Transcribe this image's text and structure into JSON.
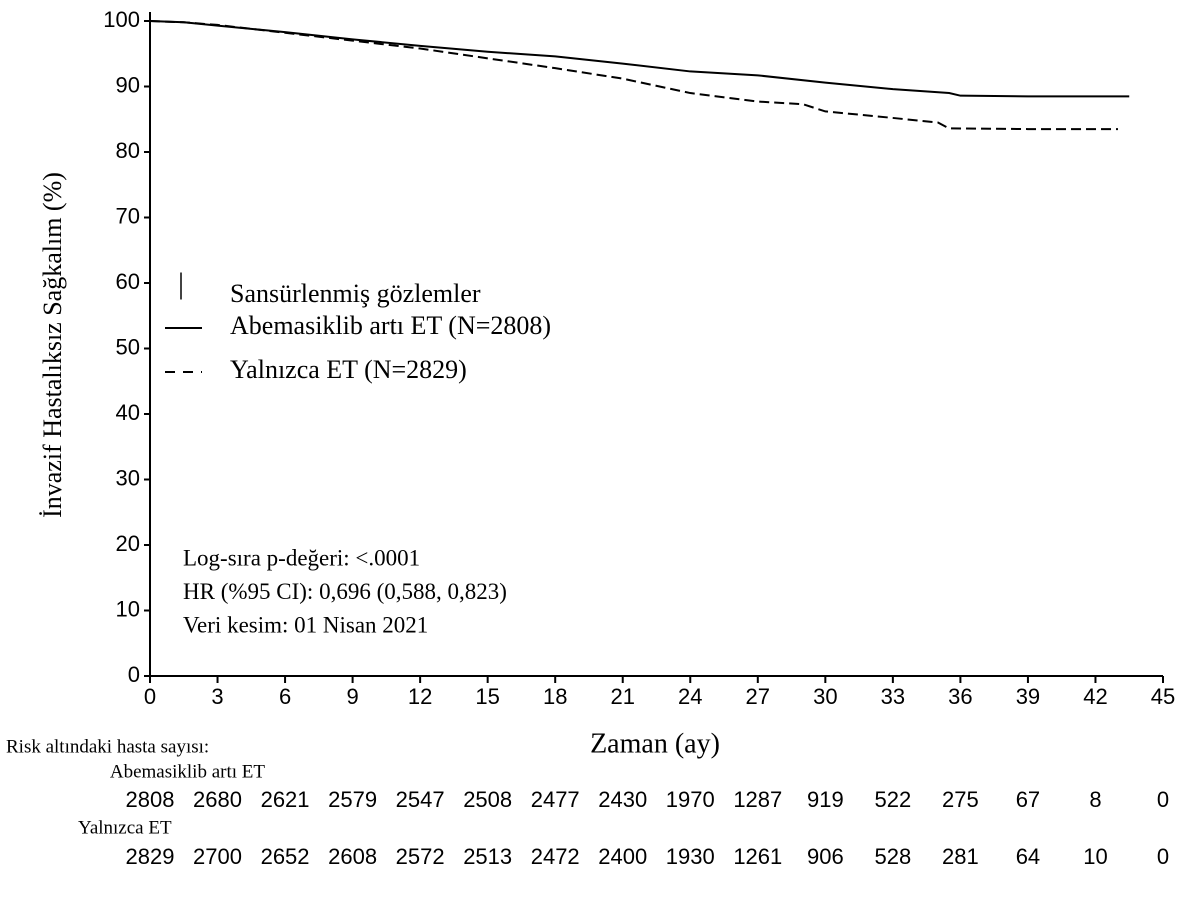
{
  "chart_data": {
    "type": "line",
    "y_label": "İnvazif Hastalıksız Sağkalım (%)",
    "x_label": "Zaman (ay)",
    "xlim": [
      0,
      45
    ],
    "ylim": [
      0,
      100
    ],
    "xticks": [
      0,
      3,
      6,
      9,
      12,
      15,
      18,
      21,
      24,
      27,
      30,
      33,
      36,
      39,
      42,
      45
    ],
    "yticks": [
      0,
      10,
      20,
      30,
      40,
      50,
      60,
      70,
      80,
      90,
      100
    ],
    "censored_label": "Sansürlenmiş gözlemler",
    "series": [
      {
        "name": "Abemasiklib artı ET (N=2808)",
        "color": "#000000",
        "dash": "solid",
        "x": [
          0,
          1.5,
          3,
          6,
          9,
          12,
          15,
          18,
          21,
          24,
          27,
          30,
          33,
          35.5,
          36,
          39,
          42,
          43.5
        ],
        "values": [
          100,
          99.8,
          99.3,
          98.3,
          97.2,
          96.2,
          95.3,
          94.6,
          93.5,
          92.3,
          91.7,
          90.6,
          89.6,
          89.0,
          88.6,
          88.5,
          88.5,
          88.5
        ]
      },
      {
        "name": "Yalnızca ET (N=2829)",
        "color": "#000000",
        "dash": "dashed",
        "x": [
          0,
          1.5,
          3,
          6,
          9,
          12,
          15,
          18,
          21,
          24,
          27,
          29,
          30,
          33,
          35,
          35.5,
          39,
          42,
          43
        ],
        "values": [
          100,
          99.8,
          99.4,
          98.2,
          97.0,
          95.8,
          94.3,
          92.8,
          91.2,
          89.0,
          87.7,
          87.3,
          86.2,
          85.2,
          84.5,
          83.6,
          83.5,
          83.5,
          83.5
        ]
      }
    ],
    "annotations": [
      "Log-sıra p-değeri: <.0001",
      "HR (%95 CI): 0,696 (0,588, 0,823)",
      "Veri kesim: 01 Nisan 2021"
    ],
    "risk_table": {
      "title": "Risk altındaki hasta sayısı:",
      "rows": [
        {
          "name": "Abemasiklib artı ET",
          "values": [
            2808,
            2680,
            2621,
            2579,
            2547,
            2508,
            2477,
            2430,
            1970,
            1287,
            919,
            522,
            275,
            67,
            8,
            0
          ]
        },
        {
          "name": "Yalnızca ET",
          "values": [
            2829,
            2700,
            2652,
            2608,
            2572,
            2513,
            2472,
            2400,
            1930,
            1261,
            906,
            528,
            281,
            64,
            10,
            0
          ]
        }
      ]
    }
  }
}
